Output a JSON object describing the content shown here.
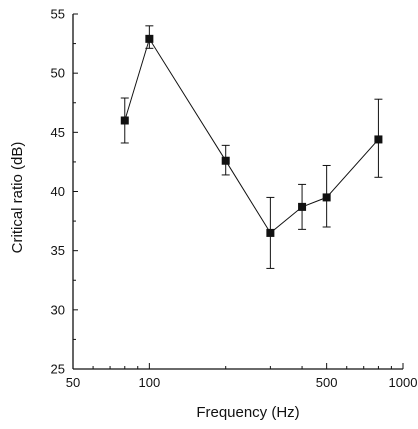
{
  "chart_data": {
    "type": "line",
    "title": "",
    "xlabel": "Frequency (Hz)",
    "ylabel": "Critical ratio (dB)",
    "x_scale": "log",
    "xlim": [
      50,
      1000
    ],
    "ylim": [
      25,
      55
    ],
    "x_ticks": [
      50,
      100,
      500,
      1000
    ],
    "x_tick_labels": [
      "50",
      "100",
      "500",
      "1000"
    ],
    "y_ticks": [
      25,
      30,
      35,
      40,
      45,
      50,
      55
    ],
    "y_tick_labels": [
      "25",
      "30",
      "35",
      "40",
      "45",
      "50",
      "55"
    ],
    "grid": false,
    "series": [
      {
        "marker": "square",
        "color": "#111111",
        "x": [
          80,
          100,
          200,
          300,
          400,
          500,
          800
        ],
        "y": [
          46.0,
          52.9,
          42.6,
          36.5,
          38.7,
          39.5,
          44.4
        ],
        "err_low": [
          44.1,
          52.1,
          41.4,
          33.5,
          36.8,
          37.0,
          41.2
        ],
        "err_high": [
          47.9,
          54.0,
          43.9,
          39.5,
          40.6,
          42.2,
          47.8
        ]
      }
    ]
  }
}
